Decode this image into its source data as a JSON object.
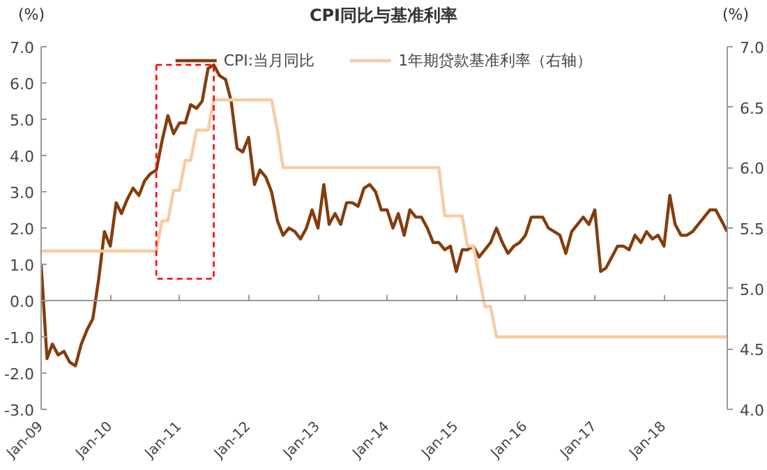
{
  "chart_data": {
    "type": "line",
    "title": "CPI同比与基准利率",
    "ylabel": "(%)",
    "y2label": "(%)",
    "x": [
      "2009-01",
      "2009-02",
      "2009-03",
      "2009-04",
      "2009-05",
      "2009-06",
      "2009-07",
      "2009-08",
      "2009-09",
      "2009-10",
      "2009-11",
      "2009-12",
      "2010-01",
      "2010-02",
      "2010-03",
      "2010-04",
      "2010-05",
      "2010-06",
      "2010-07",
      "2010-08",
      "2010-09",
      "2010-10",
      "2010-11",
      "2010-12",
      "2011-01",
      "2011-02",
      "2011-03",
      "2011-04",
      "2011-05",
      "2011-06",
      "2011-07",
      "2011-08",
      "2011-09",
      "2011-10",
      "2011-11",
      "2011-12",
      "2012-01",
      "2012-02",
      "2012-03",
      "2012-04",
      "2012-05",
      "2012-06",
      "2012-07",
      "2012-08",
      "2012-09",
      "2012-10",
      "2012-11",
      "2012-12",
      "2013-01",
      "2013-02",
      "2013-03",
      "2013-04",
      "2013-05",
      "2013-06",
      "2013-07",
      "2013-08",
      "2013-09",
      "2013-10",
      "2013-11",
      "2013-12",
      "2014-01",
      "2014-02",
      "2014-03",
      "2014-04",
      "2014-05",
      "2014-06",
      "2014-07",
      "2014-08",
      "2014-09",
      "2014-10",
      "2014-11",
      "2014-12",
      "2015-01",
      "2015-02",
      "2015-03",
      "2015-04",
      "2015-05",
      "2015-06",
      "2015-07",
      "2015-08",
      "2015-09",
      "2015-10",
      "2015-11",
      "2015-12",
      "2016-01",
      "2016-02",
      "2016-03",
      "2016-04",
      "2016-05",
      "2016-06",
      "2016-07",
      "2016-08",
      "2016-09",
      "2016-10",
      "2016-11",
      "2016-12",
      "2017-01",
      "2017-02",
      "2017-03",
      "2017-04",
      "2017-05",
      "2017-06",
      "2017-07",
      "2017-08",
      "2017-09",
      "2017-10",
      "2017-11",
      "2017-12",
      "2018-01",
      "2018-02",
      "2018-03",
      "2018-04",
      "2018-05",
      "2018-06",
      "2018-07",
      "2018-08",
      "2018-09",
      "2018-10",
      "2018-11",
      "2018-12"
    ],
    "series": [
      {
        "name": "CPI:当月同比",
        "color": "#843c0c",
        "values": [
          1.0,
          -1.6,
          -1.2,
          -1.5,
          -1.4,
          -1.7,
          -1.8,
          -1.2,
          -0.8,
          -0.5,
          0.6,
          1.9,
          1.5,
          2.7,
          2.4,
          2.8,
          3.1,
          2.9,
          3.3,
          3.5,
          3.6,
          4.4,
          5.1,
          4.6,
          4.9,
          4.9,
          5.4,
          5.3,
          5.5,
          6.4,
          6.5,
          6.2,
          6.1,
          5.5,
          4.2,
          4.1,
          4.5,
          3.2,
          3.6,
          3.4,
          3.0,
          2.2,
          1.8,
          2.0,
          1.9,
          1.7,
          2.0,
          2.5,
          2.0,
          3.2,
          2.1,
          2.4,
          2.1,
          2.7,
          2.7,
          2.6,
          3.1,
          3.2,
          3.0,
          2.5,
          2.5,
          2.0,
          2.4,
          1.8,
          2.5,
          2.3,
          2.3,
          2.0,
          1.6,
          1.6,
          1.4,
          1.5,
          0.8,
          1.4,
          1.4,
          1.5,
          1.2,
          1.4,
          1.6,
          2.0,
          1.6,
          1.3,
          1.5,
          1.6,
          1.8,
          2.3,
          2.3,
          2.3,
          2.0,
          1.9,
          1.8,
          1.3,
          1.9,
          2.1,
          2.3,
          2.1,
          2.5,
          0.8,
          0.9,
          1.2,
          1.5,
          1.5,
          1.4,
          1.8,
          1.6,
          1.9,
          1.7,
          1.8,
          1.5,
          2.9,
          2.1,
          1.8,
          1.8,
          1.9,
          2.1,
          2.3,
          2.5,
          2.5,
          2.2,
          1.9
        ]
      },
      {
        "name": "1年期贷款基准利率（右轴）",
        "color": "#f8cba0",
        "axis": "y2",
        "values": [
          5.31,
          5.31,
          5.31,
          5.31,
          5.31,
          5.31,
          5.31,
          5.31,
          5.31,
          5.31,
          5.31,
          5.31,
          5.31,
          5.31,
          5.31,
          5.31,
          5.31,
          5.31,
          5.31,
          5.31,
          5.31,
          5.56,
          5.56,
          5.81,
          5.81,
          6.06,
          6.06,
          6.31,
          6.31,
          6.31,
          6.56,
          6.56,
          6.56,
          6.56,
          6.56,
          6.56,
          6.56,
          6.56,
          6.56,
          6.56,
          6.56,
          6.31,
          6.0,
          6.0,
          6.0,
          6.0,
          6.0,
          6.0,
          6.0,
          6.0,
          6.0,
          6.0,
          6.0,
          6.0,
          6.0,
          6.0,
          6.0,
          6.0,
          6.0,
          6.0,
          6.0,
          6.0,
          6.0,
          6.0,
          6.0,
          6.0,
          6.0,
          6.0,
          6.0,
          6.0,
          5.6,
          5.6,
          5.6,
          5.6,
          5.35,
          5.35,
          5.1,
          4.85,
          4.85,
          4.6,
          4.6,
          4.6,
          4.6,
          4.6,
          4.6,
          4.6,
          4.6,
          4.6,
          4.6,
          4.6,
          4.6,
          4.6,
          4.6,
          4.6,
          4.6,
          4.6,
          4.6,
          4.6,
          4.6,
          4.6,
          4.6,
          4.6,
          4.6,
          4.6,
          4.6,
          4.6,
          4.6,
          4.6,
          4.6,
          4.6,
          4.6,
          4.6,
          4.6,
          4.6,
          4.6,
          4.6,
          4.6,
          4.6,
          4.6,
          4.6
        ]
      }
    ],
    "xlim": [
      "2009-01",
      "2018-12"
    ],
    "xticks": [
      {
        "value": "2009-01",
        "label": "Jan-09"
      },
      {
        "value": "2010-01",
        "label": "Jan-10"
      },
      {
        "value": "2011-01",
        "label": "Jan-11"
      },
      {
        "value": "2012-01",
        "label": "Jan-12"
      },
      {
        "value": "2013-01",
        "label": "Jan-13"
      },
      {
        "value": "2014-01",
        "label": "Jan-14"
      },
      {
        "value": "2015-01",
        "label": "Jan-15"
      },
      {
        "value": "2016-01",
        "label": "Jan-16"
      },
      {
        "value": "2017-01",
        "label": "Jan-17"
      },
      {
        "value": "2018-01",
        "label": "Jan-18"
      }
    ],
    "ylim": [
      -3,
      7
    ],
    "yticks": [
      {
        "value": -3,
        "label": "-3.0"
      },
      {
        "value": -2,
        "label": "-2.0"
      },
      {
        "value": -1,
        "label": "-1.0"
      },
      {
        "value": 0,
        "label": "0.0"
      },
      {
        "value": 1,
        "label": "1.0"
      },
      {
        "value": 2,
        "label": "2.0"
      },
      {
        "value": 3,
        "label": "3.0"
      },
      {
        "value": 4,
        "label": "4.0"
      },
      {
        "value": 5,
        "label": "5.0"
      },
      {
        "value": 6,
        "label": "6.0"
      },
      {
        "value": 7,
        "label": "7.0"
      }
    ],
    "y2lim": [
      4,
      7
    ],
    "y2ticks": [
      {
        "value": 4,
        "label": "4.0"
      },
      {
        "value": 4.5,
        "label": "4.5"
      },
      {
        "value": 5,
        "label": "5.0"
      },
      {
        "value": 5.5,
        "label": "5.5"
      },
      {
        "value": 6,
        "label": "6.0"
      },
      {
        "value": 6.5,
        "label": "6.5"
      },
      {
        "value": 7,
        "label": "7.0"
      }
    ],
    "legend": "top",
    "line_style": "solid",
    "marker": "none"
  }
}
